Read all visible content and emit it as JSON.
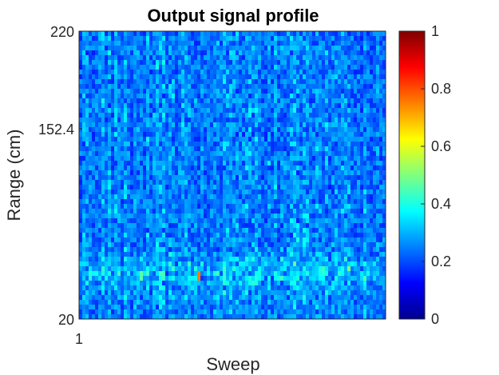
{
  "chart_data": {
    "type": "heatmap",
    "title": "Output signal profile",
    "xlabel": "Sweep",
    "ylabel": "Range (cm)",
    "x_ticks": [
      "1"
    ],
    "y_ticks": [
      "20",
      "152.4",
      "220"
    ],
    "ylim": [
      20,
      220
    ],
    "colormap": "jet",
    "colorbar": {
      "range": [
        0,
        1
      ],
      "ticks": [
        "0",
        "0.2",
        "0.4",
        "0.6",
        "0.8",
        "1"
      ]
    },
    "notable_peaks": [
      {
        "sweep_fraction": 0.39,
        "range_cm": 50,
        "value": 0.85
      },
      {
        "sweep_fraction": 0.2,
        "range_cm": 50,
        "value": 0.6
      },
      {
        "sweep_fraction": 0.04,
        "range_cm": 50,
        "value": 0.55
      },
      {
        "sweep_fraction": 0.8,
        "range_cm": 55,
        "value": 0.5
      },
      {
        "sweep_fraction": 0.88,
        "range_cm": 55,
        "value": 0.5
      }
    ],
    "background_level": 0.15
  }
}
